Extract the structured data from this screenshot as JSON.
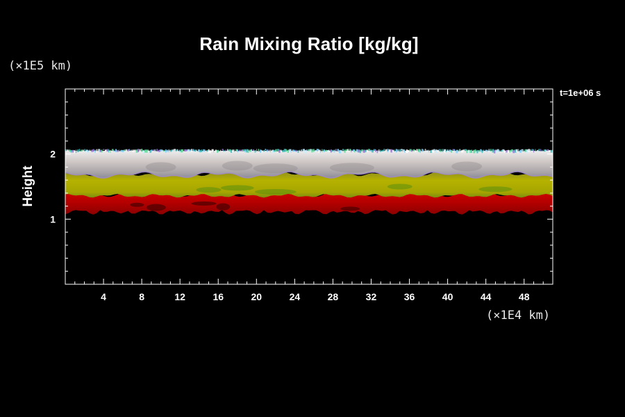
{
  "chart_data": {
    "type": "heatmap",
    "title": "Rain Mixing Ratio [kg/kg]",
    "ylabel": "Height",
    "y_unit": "(×1E5 km)",
    "x_unit": "(×1E4 km)",
    "time_label": "t=1e+06 s",
    "xlim": [
      0,
      51
    ],
    "ylim": [
      0,
      3
    ],
    "x_ticks": [
      4,
      8,
      12,
      16,
      20,
      24,
      28,
      32,
      36,
      40,
      44,
      48
    ],
    "y_ticks": [
      1,
      2
    ],
    "x_minor_step": 1,
    "y_minor_step": 0.2,
    "grid": false,
    "layers": [
      {
        "name": "top-speckle",
        "y_bottom": 2.02,
        "y_top": 2.07,
        "color": "#9fd0e0"
      },
      {
        "name": "upper-whitish",
        "y_bottom": 1.64,
        "y_top": 2.05,
        "color": "#d4cfcd"
      },
      {
        "name": "middle-olive",
        "y_bottom": 1.36,
        "y_top": 1.7,
        "color": "#b0b000"
      },
      {
        "name": "lower-red",
        "y_bottom": 1.12,
        "y_top": 1.39,
        "color": "#c00000"
      }
    ]
  }
}
